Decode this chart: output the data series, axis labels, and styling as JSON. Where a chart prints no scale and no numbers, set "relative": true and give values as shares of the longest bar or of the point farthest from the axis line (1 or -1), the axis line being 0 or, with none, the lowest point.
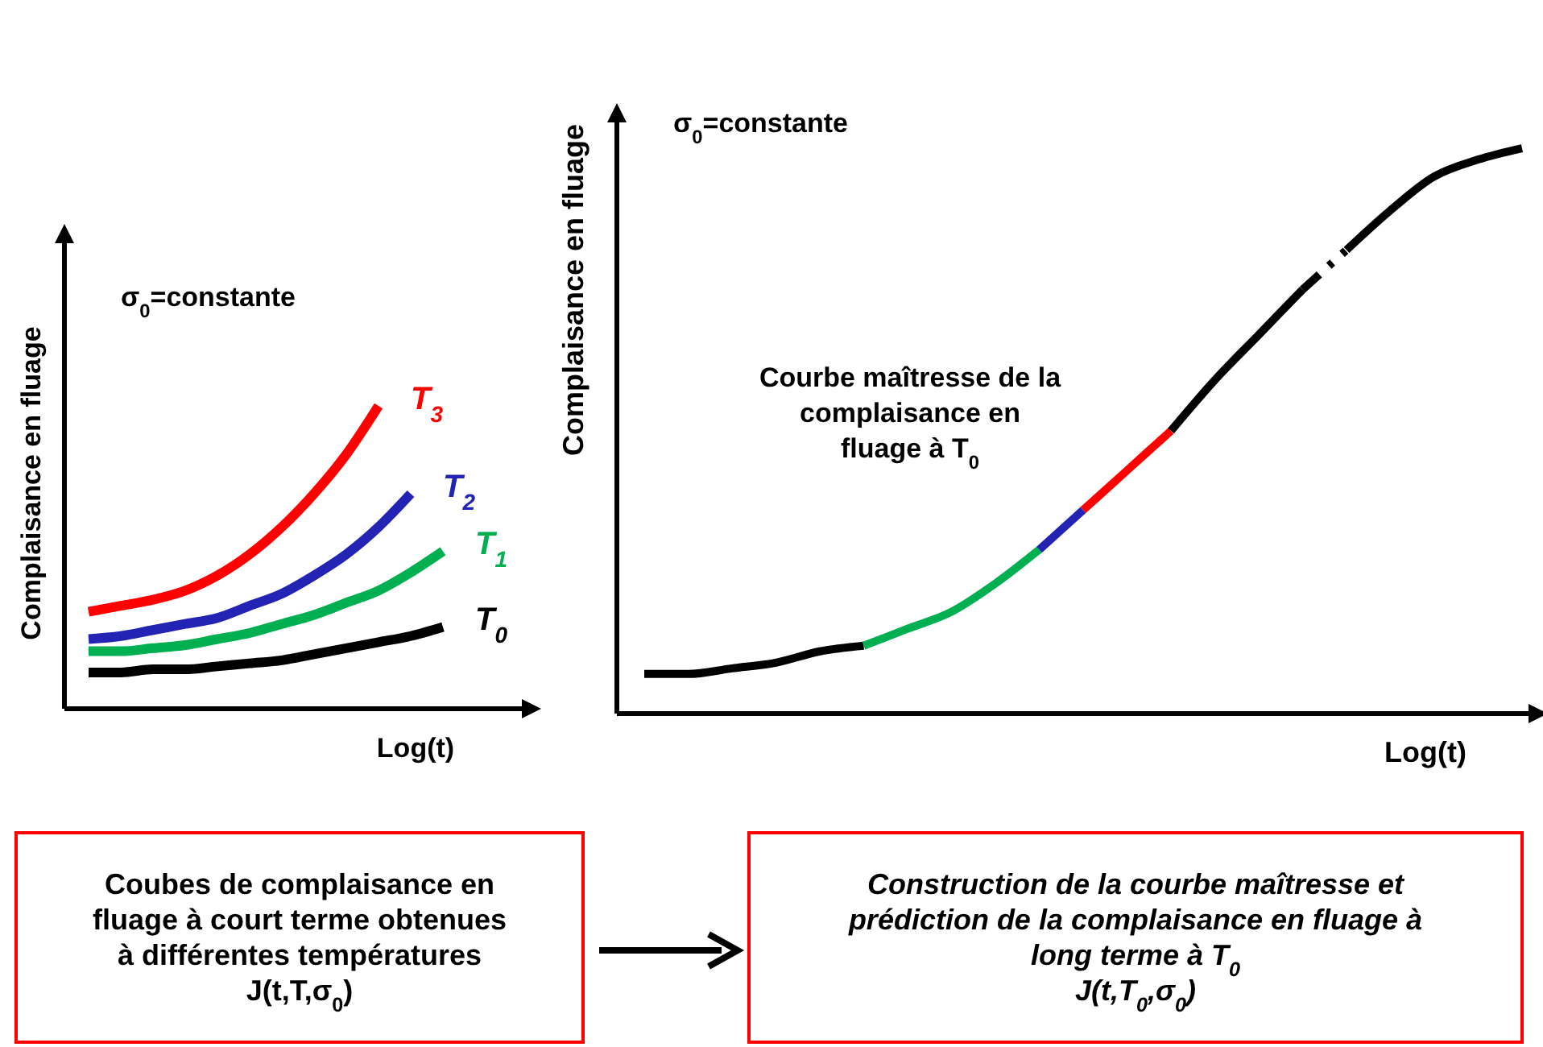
{
  "chart_data": [
    {
      "type": "line",
      "relative": true,
      "legend": false,
      "xlabel": "Log(t)",
      "ylabel": "Complaisance en fluage",
      "categories": [
        null,
        null,
        null,
        null,
        null,
        null,
        null,
        null,
        null,
        null,
        null,
        null
      ],
      "series": [
        {
          "name": "T$_{0}$",
          "color": "#000000",
          "values": [
            0.12,
            0.12,
            0.13,
            0.13,
            0.14,
            0.15,
            0.16,
            0.18,
            0.2,
            0.22,
            0.24,
            0.27
          ]
        },
        {
          "name": "T$_{1}$",
          "color": "#00b050",
          "values": [
            0.19,
            0.19,
            0.2,
            0.21,
            0.23,
            0.25,
            0.28,
            0.31,
            0.35,
            0.39,
            0.45,
            0.52
          ]
        },
        {
          "name": "T$_{2}$",
          "color": "#2424b4",
          "values": [
            0.23,
            0.24,
            0.26,
            0.28,
            0.3,
            0.34,
            0.38,
            0.44,
            0.51,
            0.6,
            0.71,
            null
          ]
        },
        {
          "name": "T$_{3}$",
          "color": "#ff0000",
          "values": [
            0.32,
            0.34,
            0.36,
            0.39,
            0.44,
            0.51,
            0.6,
            0.71,
            0.84,
            1,
            null,
            null
          ]
        }
      ],
      "annotations": [
        "σ$_{0}$=constante",
        "Coubes de complaisance en\nfluage à court terme obtenues\nà différentes températures\nJ(t,T,σ$_{0}$)"
      ]
    },
    {
      "type": "line",
      "relative": true,
      "xlabel": "Log(t)",
      "ylabel": "Complaisance en fluage",
      "categories": [
        null,
        null,
        null,
        null,
        null,
        null,
        null,
        null,
        null,
        null,
        null,
        null,
        null,
        null,
        null,
        null,
        null,
        null,
        null,
        null,
        null
      ],
      "series": [
        {
          "color": "#000000",
          "line_style": "solid",
          "values": [
            0.07,
            0.07,
            0.08,
            0.09,
            0.11,
            0.12,
            null,
            null,
            null,
            null,
            null,
            null,
            null,
            null,
            null,
            null,
            null,
            null,
            null,
            null,
            null
          ]
        },
        {
          "color": "#00b050",
          "line_style": "solid",
          "values": [
            null,
            null,
            null,
            null,
            null,
            0.12,
            0.15,
            0.18,
            0.23,
            0.29,
            null,
            null,
            null,
            null,
            null,
            null,
            null,
            null,
            null,
            null,
            null
          ]
        },
        {
          "color": "#2424b4",
          "line_style": "solid",
          "values": [
            null,
            null,
            null,
            null,
            null,
            null,
            null,
            null,
            null,
            0.29,
            0.36,
            null,
            null,
            null,
            null,
            null,
            null,
            null,
            null,
            null,
            null
          ]
        },
        {
          "color": "#ff0000",
          "line_style": "solid",
          "values": [
            null,
            null,
            null,
            null,
            null,
            null,
            null,
            null,
            null,
            null,
            0.36,
            0.43,
            0.5,
            null,
            null,
            null,
            null,
            null,
            null,
            null,
            null
          ]
        },
        {
          "color": "#000000",
          "line_style": "solid",
          "values": [
            null,
            null,
            null,
            null,
            null,
            null,
            null,
            null,
            null,
            null,
            null,
            null,
            0.5,
            0.59,
            0.67,
            0.75,
            null,
            null,
            null,
            null,
            null
          ]
        },
        {
          "color": "#000000",
          "line_style": "dashed",
          "values": [
            null,
            null,
            null,
            null,
            null,
            null,
            null,
            null,
            null,
            null,
            null,
            null,
            null,
            null,
            null,
            0.75,
            0.82,
            null,
            null,
            null,
            null
          ]
        },
        {
          "color": "#000000",
          "line_style": "solid",
          "values": [
            null,
            null,
            null,
            null,
            null,
            null,
            null,
            null,
            null,
            null,
            null,
            null,
            null,
            null,
            null,
            null,
            0.82,
            0.89,
            0.95,
            0.98,
            1
          ]
        }
      ],
      "annotations": [
        "σ$_{0}$=constante",
        "Courbe maîtresse de la\ncomplaisance en\nfluage à T$_{0}$",
        "Construction de la courbe maîtresse et\nprédiction de la complaisance en fluage à\nlong terme à T$_{0}$\nJ(t,T$_{0}$,σ$_{0}$)"
      ]
    }
  ]
}
